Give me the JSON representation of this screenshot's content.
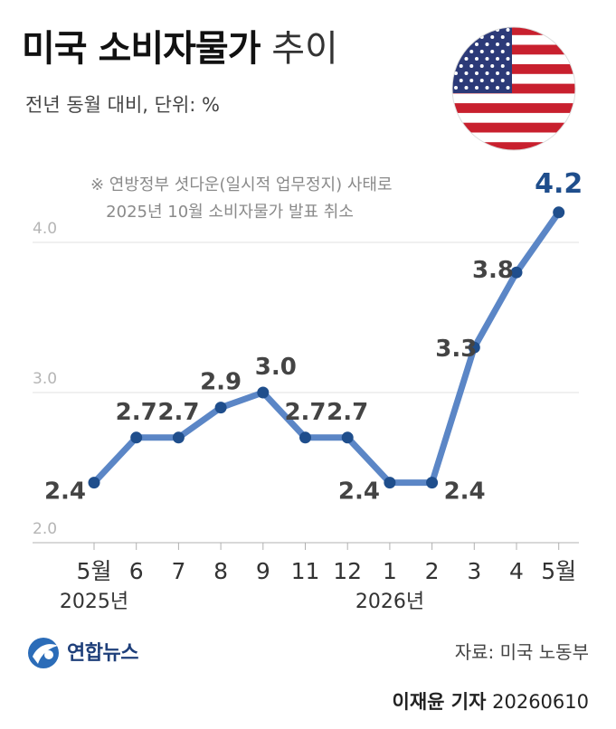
{
  "header": {
    "title_bold": "미국 소비자물가",
    "title_light": "추이",
    "subtitle": "전년 동월 대비, 단위: %"
  },
  "note": "※ 연방정부 셧다운(일시적 업무정지) 사태로\n   2025년 10월 소비자물가 발표 취소",
  "footer": {
    "logo_text": "연합뉴스",
    "source": "자료: 미국 노동부",
    "reporter": "이재윤 기자",
    "date": "20260610"
  },
  "colors": {
    "line": "#5b86c6",
    "highlight": "#1f4e8c",
    "label": "#444444",
    "axis": "#b0b0b0"
  },
  "chart_data": {
    "type": "line",
    "categories": [
      "5월",
      "6",
      "7",
      "8",
      "9",
      "11",
      "12",
      "1",
      "2",
      "3",
      "4",
      "5월"
    ],
    "year_labels": [
      "2025년",
      "2026년"
    ],
    "values": [
      2.4,
      2.7,
      2.7,
      2.9,
      3.0,
      2.7,
      2.7,
      2.4,
      2.4,
      3.3,
      3.8,
      4.2
    ],
    "data_labels": [
      "2.4",
      "2.7",
      "2.7",
      "2.9",
      "3.0",
      "2.7",
      "2.7",
      "2.4",
      "2.4",
      "3.3",
      "3.8",
      "4.2"
    ],
    "y_ticks": [
      2.0,
      3.0,
      4.0
    ],
    "y_tick_labels": [
      "2.0",
      "3.0",
      "4.0"
    ],
    "ylim": [
      2.0,
      4.0
    ],
    "grid": true
  }
}
